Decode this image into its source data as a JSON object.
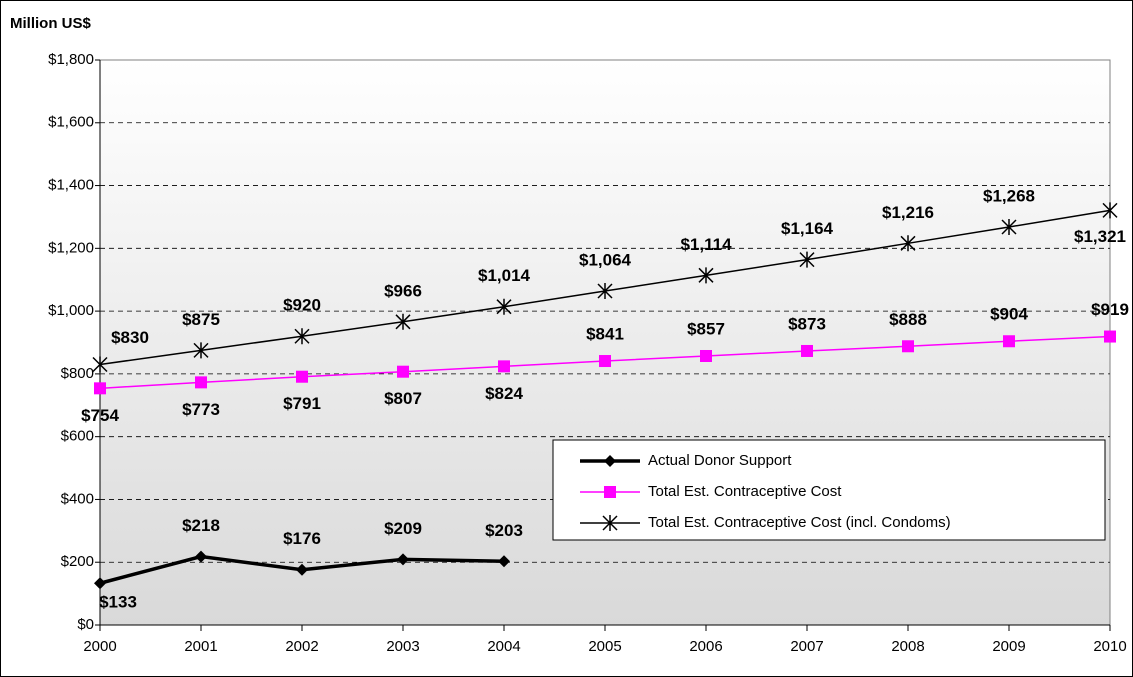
{
  "chart_data": {
    "type": "line",
    "y_label": "Million US$",
    "categories": [
      "2000",
      "2001",
      "2002",
      "2003",
      "2004",
      "2005",
      "2006",
      "2007",
      "2008",
      "2009",
      "2010"
    ],
    "ylim": [
      0,
      1800
    ],
    "yticks": [
      {
        "value": 0,
        "label": "$0"
      },
      {
        "value": 200,
        "label": "$200"
      },
      {
        "value": 400,
        "label": "$400"
      },
      {
        "value": 600,
        "label": "$600"
      },
      {
        "value": 800,
        "label": "$800"
      },
      {
        "value": 1000,
        "label": "$1,000"
      },
      {
        "value": 1200,
        "label": "$1,200"
      },
      {
        "value": 1400,
        "label": "$1,400"
      },
      {
        "value": 1600,
        "label": "$1,600"
      },
      {
        "value": 1800,
        "label": "$1,800"
      }
    ],
    "grid": true,
    "legend": "lower right",
    "series": [
      {
        "name": "Actual Donor Support",
        "color": "#000000",
        "marker": "diamond",
        "values": [
          133,
          218,
          176,
          209,
          203,
          null,
          null,
          null,
          null,
          null,
          null
        ],
        "value_labels": [
          "$133",
          "$218",
          "$176",
          "$209",
          "$203",
          null,
          null,
          null,
          null,
          null,
          null
        ]
      },
      {
        "name": "Total Est. Contraceptive Cost",
        "color": "#ff00ff",
        "marker": "square",
        "values": [
          754,
          773,
          791,
          807,
          824,
          841,
          857,
          873,
          888,
          904,
          919
        ],
        "value_labels": [
          "$754",
          "$773",
          "$791",
          "$807",
          "$824",
          "$841",
          "$857",
          "$873",
          "$888",
          "$904",
          "$919"
        ]
      },
      {
        "name": "Total Est. Contraceptive Cost (incl. Condoms)",
        "color": "#000000",
        "marker": "asterisk",
        "values": [
          830,
          875,
          920,
          966,
          1014,
          1064,
          1114,
          1164,
          1216,
          1268,
          1321
        ],
        "value_labels": [
          "$830",
          "$875",
          "$920",
          "$966",
          "$1,014",
          "$1,064",
          "$1,114",
          "$1,164",
          "$1,216",
          "$1,268",
          "$1,321"
        ]
      }
    ]
  }
}
